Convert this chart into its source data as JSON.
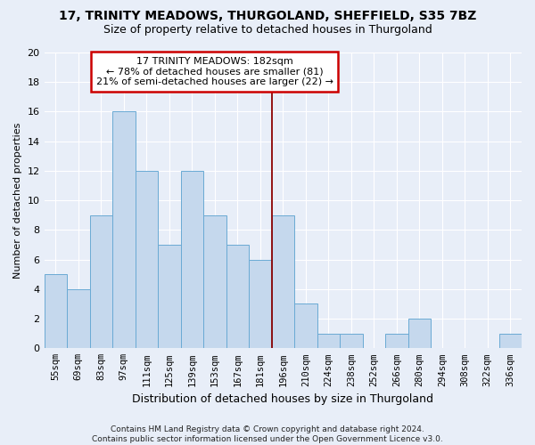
{
  "title": "17, TRINITY MEADOWS, THURGOLAND, SHEFFIELD, S35 7BZ",
  "subtitle": "Size of property relative to detached houses in Thurgoland",
  "xlabel": "Distribution of detached houses by size in Thurgoland",
  "ylabel": "Number of detached properties",
  "footer_line1": "Contains HM Land Registry data © Crown copyright and database right 2024.",
  "footer_line2": "Contains public sector information licensed under the Open Government Licence v3.0.",
  "bin_labels": [
    "55sqm",
    "69sqm",
    "83sqm",
    "97sqm",
    "111sqm",
    "125sqm",
    "139sqm",
    "153sqm",
    "167sqm",
    "181sqm",
    "196sqm",
    "210sqm",
    "224sqm",
    "238sqm",
    "252sqm",
    "266sqm",
    "280sqm",
    "294sqm",
    "308sqm",
    "322sqm",
    "336sqm"
  ],
  "bar_values": [
    5,
    4,
    9,
    16,
    12,
    7,
    12,
    9,
    7,
    6,
    9,
    3,
    1,
    1,
    0,
    1,
    2,
    0,
    0,
    0,
    1
  ],
  "bar_color": "#c5d8ed",
  "bar_edgecolor": "#6aaad4",
  "ylim": [
    0,
    20
  ],
  "yticks": [
    0,
    2,
    4,
    6,
    8,
    10,
    12,
    14,
    16,
    18,
    20
  ],
  "vline_x_index": 9.5,
  "annotation_title": "17 TRINITY MEADOWS: 182sqm",
  "annotation_line2": "← 78% of detached houses are smaller (81)",
  "annotation_line3": "21% of semi-detached houses are larger (22) →",
  "annotation_box_facecolor": "#ffffff",
  "annotation_border_color": "#cc0000",
  "vline_color": "#8b0000",
  "background_color": "#e8eef8",
  "grid_color": "#ffffff",
  "title_fontsize": 10,
  "subtitle_fontsize": 9,
  "ylabel_fontsize": 8,
  "xlabel_fontsize": 9,
  "tick_label_fontsize": 7.5,
  "ytick_fontsize": 8,
  "footer_fontsize": 6.5,
  "annot_fontsize": 8
}
